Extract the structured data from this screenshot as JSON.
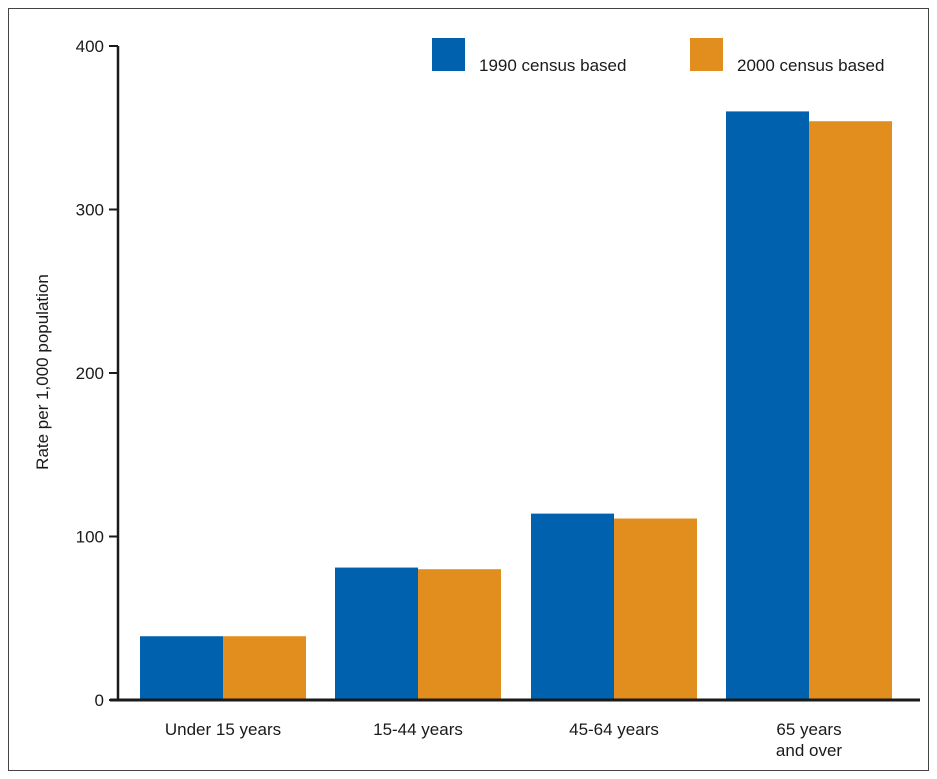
{
  "chart_data": {
    "type": "bar",
    "categories": [
      [
        "Under 15 years"
      ],
      [
        "15-44 years"
      ],
      [
        "45-64 years"
      ],
      [
        "65 years",
        "and over"
      ]
    ],
    "series": [
      {
        "name": "1990 census based",
        "color": "#0062ae",
        "values": [
          39,
          81,
          114,
          360
        ]
      },
      {
        "name": "2000 census based",
        "color": "#e18e1f",
        "values": [
          39,
          80,
          111,
          354
        ]
      }
    ],
    "ylabel": "Rate per 1,000 population",
    "xlabel": "",
    "ylim": [
      0,
      400
    ],
    "yticks": [
      "0",
      "100",
      "200",
      "300",
      "400"
    ],
    "grid": false,
    "legend_position": "top-right"
  }
}
